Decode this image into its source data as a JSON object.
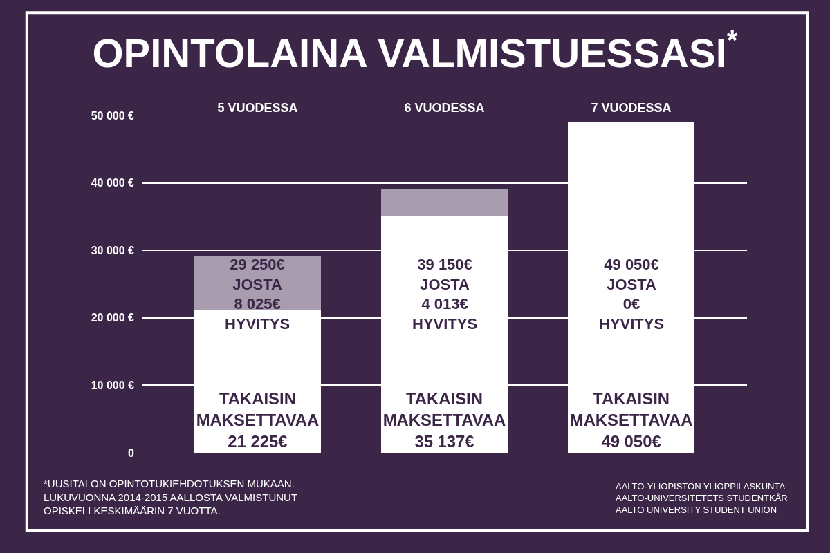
{
  "chart_data": {
    "type": "bar",
    "title": "OPINTOLAINA VALMISTUESSASI$^{*}$",
    "categories": [
      "5 VUODESSA",
      "6 VUODESSA",
      "7 VUODESSA"
    ],
    "stacked": true,
    "series": [
      {
        "color": "#ffffff",
        "values": [
          21225,
          35137,
          49050
        ],
        "value_labels": [
          "TAKAISIN\nMAKSETTAVAA\n21 225€",
          "TAKAISIN\nMAKSETTAVAA\n35 137€",
          "TAKAISIN\nMAKSETTAVAA\n49 050€"
        ]
      },
      {
        "color": "#a89daf",
        "values": [
          8025,
          4013,
          0
        ]
      }
    ],
    "ylim": [
      0,
      50000
    ],
    "yticks": [
      {
        "value": 0,
        "label": "0"
      },
      {
        "value": 10000,
        "label": "10 000 €"
      },
      {
        "value": 20000,
        "label": "20 000 €"
      },
      {
        "value": 30000,
        "label": "30 000 €"
      },
      {
        "value": 40000,
        "label": "40 000 €"
      },
      {
        "value": 50000,
        "label": "50 000 €"
      }
    ],
    "grid": "y",
    "annotations": [
      "29 250€\nJOSTA\n8 025€\nHYVITYS",
      "39 150€\nJOSTA\n4 013€\nHYVITYS",
      "49 050€\nJOSTA\n0€\nHYVITYS",
      "*UUSITALON OPINTOTUKIEHDOTUKSEN MUKAAN.\nLUKUVUONNA 2014-2015 AALLOSTA VALMISTUNUT\nOPISKELI KESKIMÄÄRIN 7 VUOTTA.",
      "AALTO-YLIOPISTON YLIOPPILASKUNTA\nAALTO-UNIVERSITETETS STUDENTKÅR\nAALTO UNIVERSITY STUDENT UNION"
    ]
  }
}
